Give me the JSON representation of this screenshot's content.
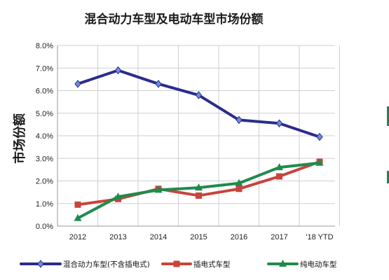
{
  "chart_data": {
    "type": "line",
    "title": "混合动力车型及电动车型市场份额",
    "ylabel": "市场份额",
    "xlabel": "",
    "categories": [
      "2012",
      "2013",
      "2014",
      "2015",
      "2016",
      "2017",
      "'18 YTD"
    ],
    "yticks": [
      "0.0%",
      "1.0%",
      "2.0%",
      "3.0%",
      "4.0%",
      "5.0%",
      "6.0%",
      "7.0%",
      "8.0%"
    ],
    "ylim": [
      0,
      8
    ],
    "grid": true,
    "legend_position": "bottom",
    "series": [
      {
        "name": "混合动力车型(不含插电式)",
        "color": "#2b2c8c",
        "marker": "diamond",
        "values": [
          6.3,
          6.9,
          6.3,
          5.8,
          4.7,
          4.55,
          3.95
        ]
      },
      {
        "name": "插电式车型",
        "color": "#c8443c",
        "marker": "square",
        "values": [
          0.95,
          1.2,
          1.65,
          1.35,
          1.65,
          2.2,
          2.85
        ]
      },
      {
        "name": "纯电动车型",
        "color": "#1f8b4c",
        "marker": "triangle",
        "values": [
          0.35,
          1.3,
          1.6,
          1.7,
          1.9,
          2.6,
          2.8
        ]
      }
    ]
  }
}
